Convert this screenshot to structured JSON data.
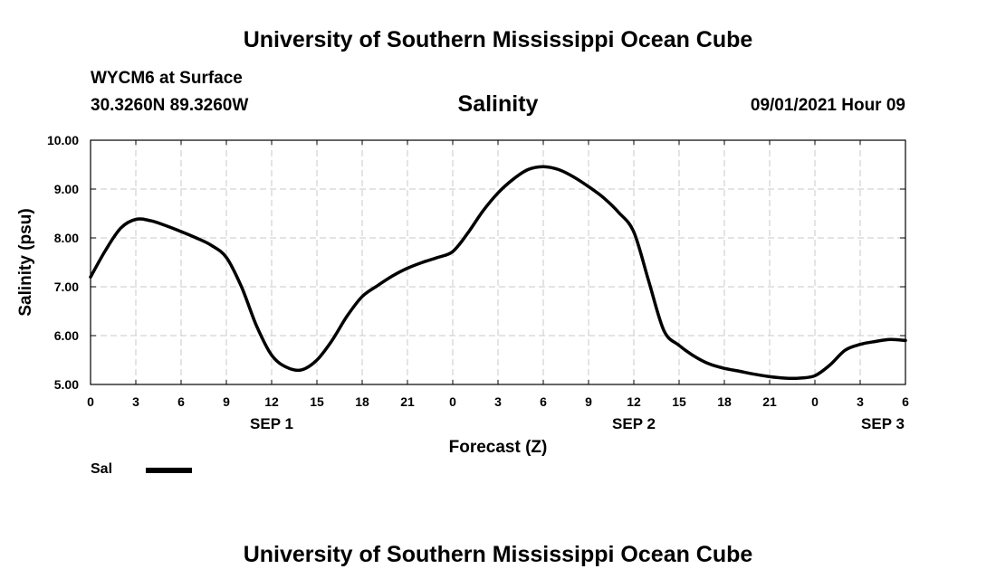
{
  "header": {
    "title": "University of Southern Mississippi Ocean Cube",
    "station": "WYCM6 at Surface",
    "coords": "30.3260N  89.3260W",
    "datetime": "09/01/2021 Hour 09"
  },
  "footer": {
    "title": "University of Southern Mississippi Ocean Cube"
  },
  "legend": {
    "label": "Sal",
    "color": "#000000"
  },
  "chart_data": {
    "type": "line",
    "title": "Salinity",
    "xlabel": "Forecast (Z)",
    "ylabel": "Salinity (psu)",
    "xlim": [
      0,
      54
    ],
    "ylim": [
      5.0,
      10.0
    ],
    "grid": true,
    "legend_position": "bottom-left",
    "y_ticks": [
      "5.00",
      "6.00",
      "7.00",
      "8.00",
      "9.00",
      "10.00"
    ],
    "x_ticks": [
      {
        "x": 0,
        "label": "0"
      },
      {
        "x": 3,
        "label": "3"
      },
      {
        "x": 6,
        "label": "6"
      },
      {
        "x": 9,
        "label": "9"
      },
      {
        "x": 12,
        "label": "12"
      },
      {
        "x": 15,
        "label": "15"
      },
      {
        "x": 18,
        "label": "18"
      },
      {
        "x": 21,
        "label": "21"
      },
      {
        "x": 24,
        "label": "0"
      },
      {
        "x": 27,
        "label": "3"
      },
      {
        "x": 30,
        "label": "6"
      },
      {
        "x": 33,
        "label": "9"
      },
      {
        "x": 36,
        "label": "12"
      },
      {
        "x": 39,
        "label": "15"
      },
      {
        "x": 42,
        "label": "18"
      },
      {
        "x": 45,
        "label": "21"
      },
      {
        "x": 48,
        "label": "0"
      },
      {
        "x": 51,
        "label": "3"
      },
      {
        "x": 54,
        "label": "6"
      }
    ],
    "day_labels": [
      {
        "x": 12,
        "label": "SEP 1"
      },
      {
        "x": 36,
        "label": "SEP 2"
      },
      {
        "x": 52.5,
        "label": "SEP 3"
      }
    ],
    "series": [
      {
        "name": "Sal",
        "color": "#000000",
        "x": [
          0,
          1,
          2,
          3,
          4,
          5,
          6,
          7,
          8,
          9,
          10,
          11,
          12,
          13,
          14,
          15,
          16,
          17,
          18,
          19,
          20,
          21,
          22,
          23,
          24,
          25,
          26,
          27,
          28,
          29,
          30,
          31,
          32,
          33,
          34,
          35,
          36,
          37,
          38,
          39,
          40,
          41,
          42,
          43,
          44,
          45,
          46,
          47,
          48,
          49,
          50,
          51,
          52,
          53,
          54
        ],
        "values": [
          7.2,
          7.75,
          8.2,
          8.38,
          8.35,
          8.25,
          8.13,
          8.0,
          7.85,
          7.6,
          7.0,
          6.2,
          5.6,
          5.35,
          5.3,
          5.5,
          5.9,
          6.4,
          6.8,
          7.02,
          7.22,
          7.38,
          7.5,
          7.6,
          7.72,
          8.1,
          8.55,
          8.92,
          9.2,
          9.4,
          9.46,
          9.4,
          9.25,
          9.05,
          8.82,
          8.52,
          8.12,
          7.1,
          6.1,
          5.8,
          5.58,
          5.42,
          5.33,
          5.27,
          5.21,
          5.16,
          5.13,
          5.13,
          5.18,
          5.4,
          5.7,
          5.82,
          5.88,
          5.92,
          5.9
        ]
      }
    ]
  }
}
